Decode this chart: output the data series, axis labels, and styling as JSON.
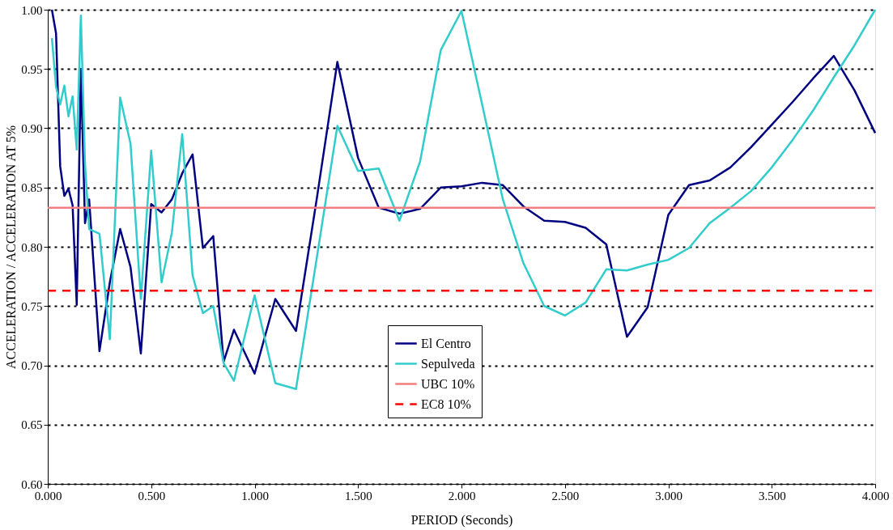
{
  "chart_data": {
    "type": "line",
    "xlabel": "PERIOD (Seconds)",
    "ylabel": "ACCELERATION / ACCELERATION AT 5%",
    "xlim": [
      0,
      4
    ],
    "ylim": [
      0.6,
      1.0
    ],
    "xticks": [
      {
        "value": 0,
        "label": "0.000"
      },
      {
        "value": 0.5,
        "label": "0.500"
      },
      {
        "value": 1,
        "label": "1.000"
      },
      {
        "value": 1.5,
        "label": "1.500"
      },
      {
        "value": 2,
        "label": "2.000"
      },
      {
        "value": 2.5,
        "label": "2.500"
      },
      {
        "value": 3,
        "label": "3.000"
      },
      {
        "value": 3.5,
        "label": "3.500"
      },
      {
        "value": 4,
        "label": "4.000"
      }
    ],
    "yticks": [
      {
        "value": 0.6,
        "label": "0.60"
      },
      {
        "value": 0.65,
        "label": "0.65"
      },
      {
        "value": 0.7,
        "label": "0.70"
      },
      {
        "value": 0.75,
        "label": "0.75"
      },
      {
        "value": 0.8,
        "label": "0.80"
      },
      {
        "value": 0.85,
        "label": "0.85"
      },
      {
        "value": 0.9,
        "label": "0.90"
      },
      {
        "value": 0.95,
        "label": "0.95"
      },
      {
        "value": 1.0,
        "label": "1.00"
      }
    ],
    "grid": "y",
    "legend": "bottom",
    "marker": "none",
    "series": [
      {
        "name": "El Centro",
        "color": "#000080",
        "line_style": "solid",
        "x": [
          0.02,
          0.04,
          0.06,
          0.08,
          0.1,
          0.12,
          0.14,
          0.16,
          0.18,
          0.2,
          0.25,
          0.3,
          0.35,
          0.4,
          0.45,
          0.5,
          0.55,
          0.6,
          0.65,
          0.7,
          0.75,
          0.8,
          0.85,
          0.9,
          1.0,
          1.1,
          1.2,
          1.3,
          1.4,
          1.5,
          1.6,
          1.7,
          1.8,
          1.9,
          2.0,
          2.1,
          2.2,
          2.3,
          2.4,
          2.5,
          2.6,
          2.7,
          2.8,
          2.9,
          3.0,
          3.1,
          3.2,
          3.3,
          3.4,
          3.5,
          3.6,
          3.7,
          3.8,
          3.9,
          4.0
        ],
        "values": [
          1.0,
          0.98,
          0.868,
          0.843,
          0.849,
          0.835,
          0.751,
          0.95,
          0.82,
          0.84,
          0.712,
          0.77,
          0.815,
          0.783,
          0.71,
          0.836,
          0.829,
          0.84,
          0.862,
          0.878,
          0.799,
          0.809,
          0.703,
          0.73,
          0.693,
          0.756,
          0.729,
          0.84,
          0.956,
          0.875,
          0.833,
          0.828,
          0.832,
          0.85,
          0.851,
          0.854,
          0.852,
          0.834,
          0.822,
          0.821,
          0.816,
          0.802,
          0.724,
          0.749,
          0.827,
          0.852,
          0.856,
          0.867,
          0.884,
          0.903,
          0.922,
          0.942,
          0.961,
          0.932,
          0.896
        ]
      },
      {
        "name": "Sepulveda",
        "color": "#33cccc",
        "line_style": "solid",
        "x": [
          0.02,
          0.04,
          0.06,
          0.08,
          0.1,
          0.12,
          0.14,
          0.16,
          0.18,
          0.2,
          0.25,
          0.3,
          0.35,
          0.4,
          0.45,
          0.5,
          0.55,
          0.6,
          0.65,
          0.7,
          0.75,
          0.8,
          0.85,
          0.9,
          1.0,
          1.1,
          1.2,
          1.3,
          1.4,
          1.5,
          1.6,
          1.7,
          1.8,
          1.9,
          2.0,
          2.1,
          2.2,
          2.3,
          2.4,
          2.5,
          2.6,
          2.7,
          2.8,
          2.9,
          3.0,
          3.1,
          3.2,
          3.3,
          3.4,
          3.5,
          3.6,
          3.7,
          3.8,
          3.9,
          4.0
        ],
        "values": [
          0.976,
          0.935,
          0.92,
          0.936,
          0.91,
          0.927,
          0.882,
          0.995,
          0.87,
          0.815,
          0.811,
          0.722,
          0.926,
          0.887,
          0.756,
          0.881,
          0.77,
          0.812,
          0.895,
          0.776,
          0.744,
          0.75,
          0.702,
          0.687,
          0.759,
          0.685,
          0.68,
          0.79,
          0.902,
          0.864,
          0.866,
          0.822,
          0.872,
          0.966,
          0.999,
          0.92,
          0.84,
          0.786,
          0.75,
          0.742,
          0.753,
          0.781,
          0.78,
          0.785,
          0.789,
          0.799,
          0.82,
          0.833,
          0.847,
          0.867,
          0.89,
          0.915,
          0.943,
          0.97,
          1.0
        ]
      },
      {
        "name": "UBC 10%",
        "color": "#f08080",
        "line_style": "solid",
        "x": [
          0,
          4
        ],
        "values": [
          0.833,
          0.833
        ]
      },
      {
        "name": "EC8 10%",
        "color": "#ff0000",
        "line_style": "dashed",
        "x": [
          0,
          4
        ],
        "values": [
          0.763,
          0.763
        ]
      }
    ]
  }
}
